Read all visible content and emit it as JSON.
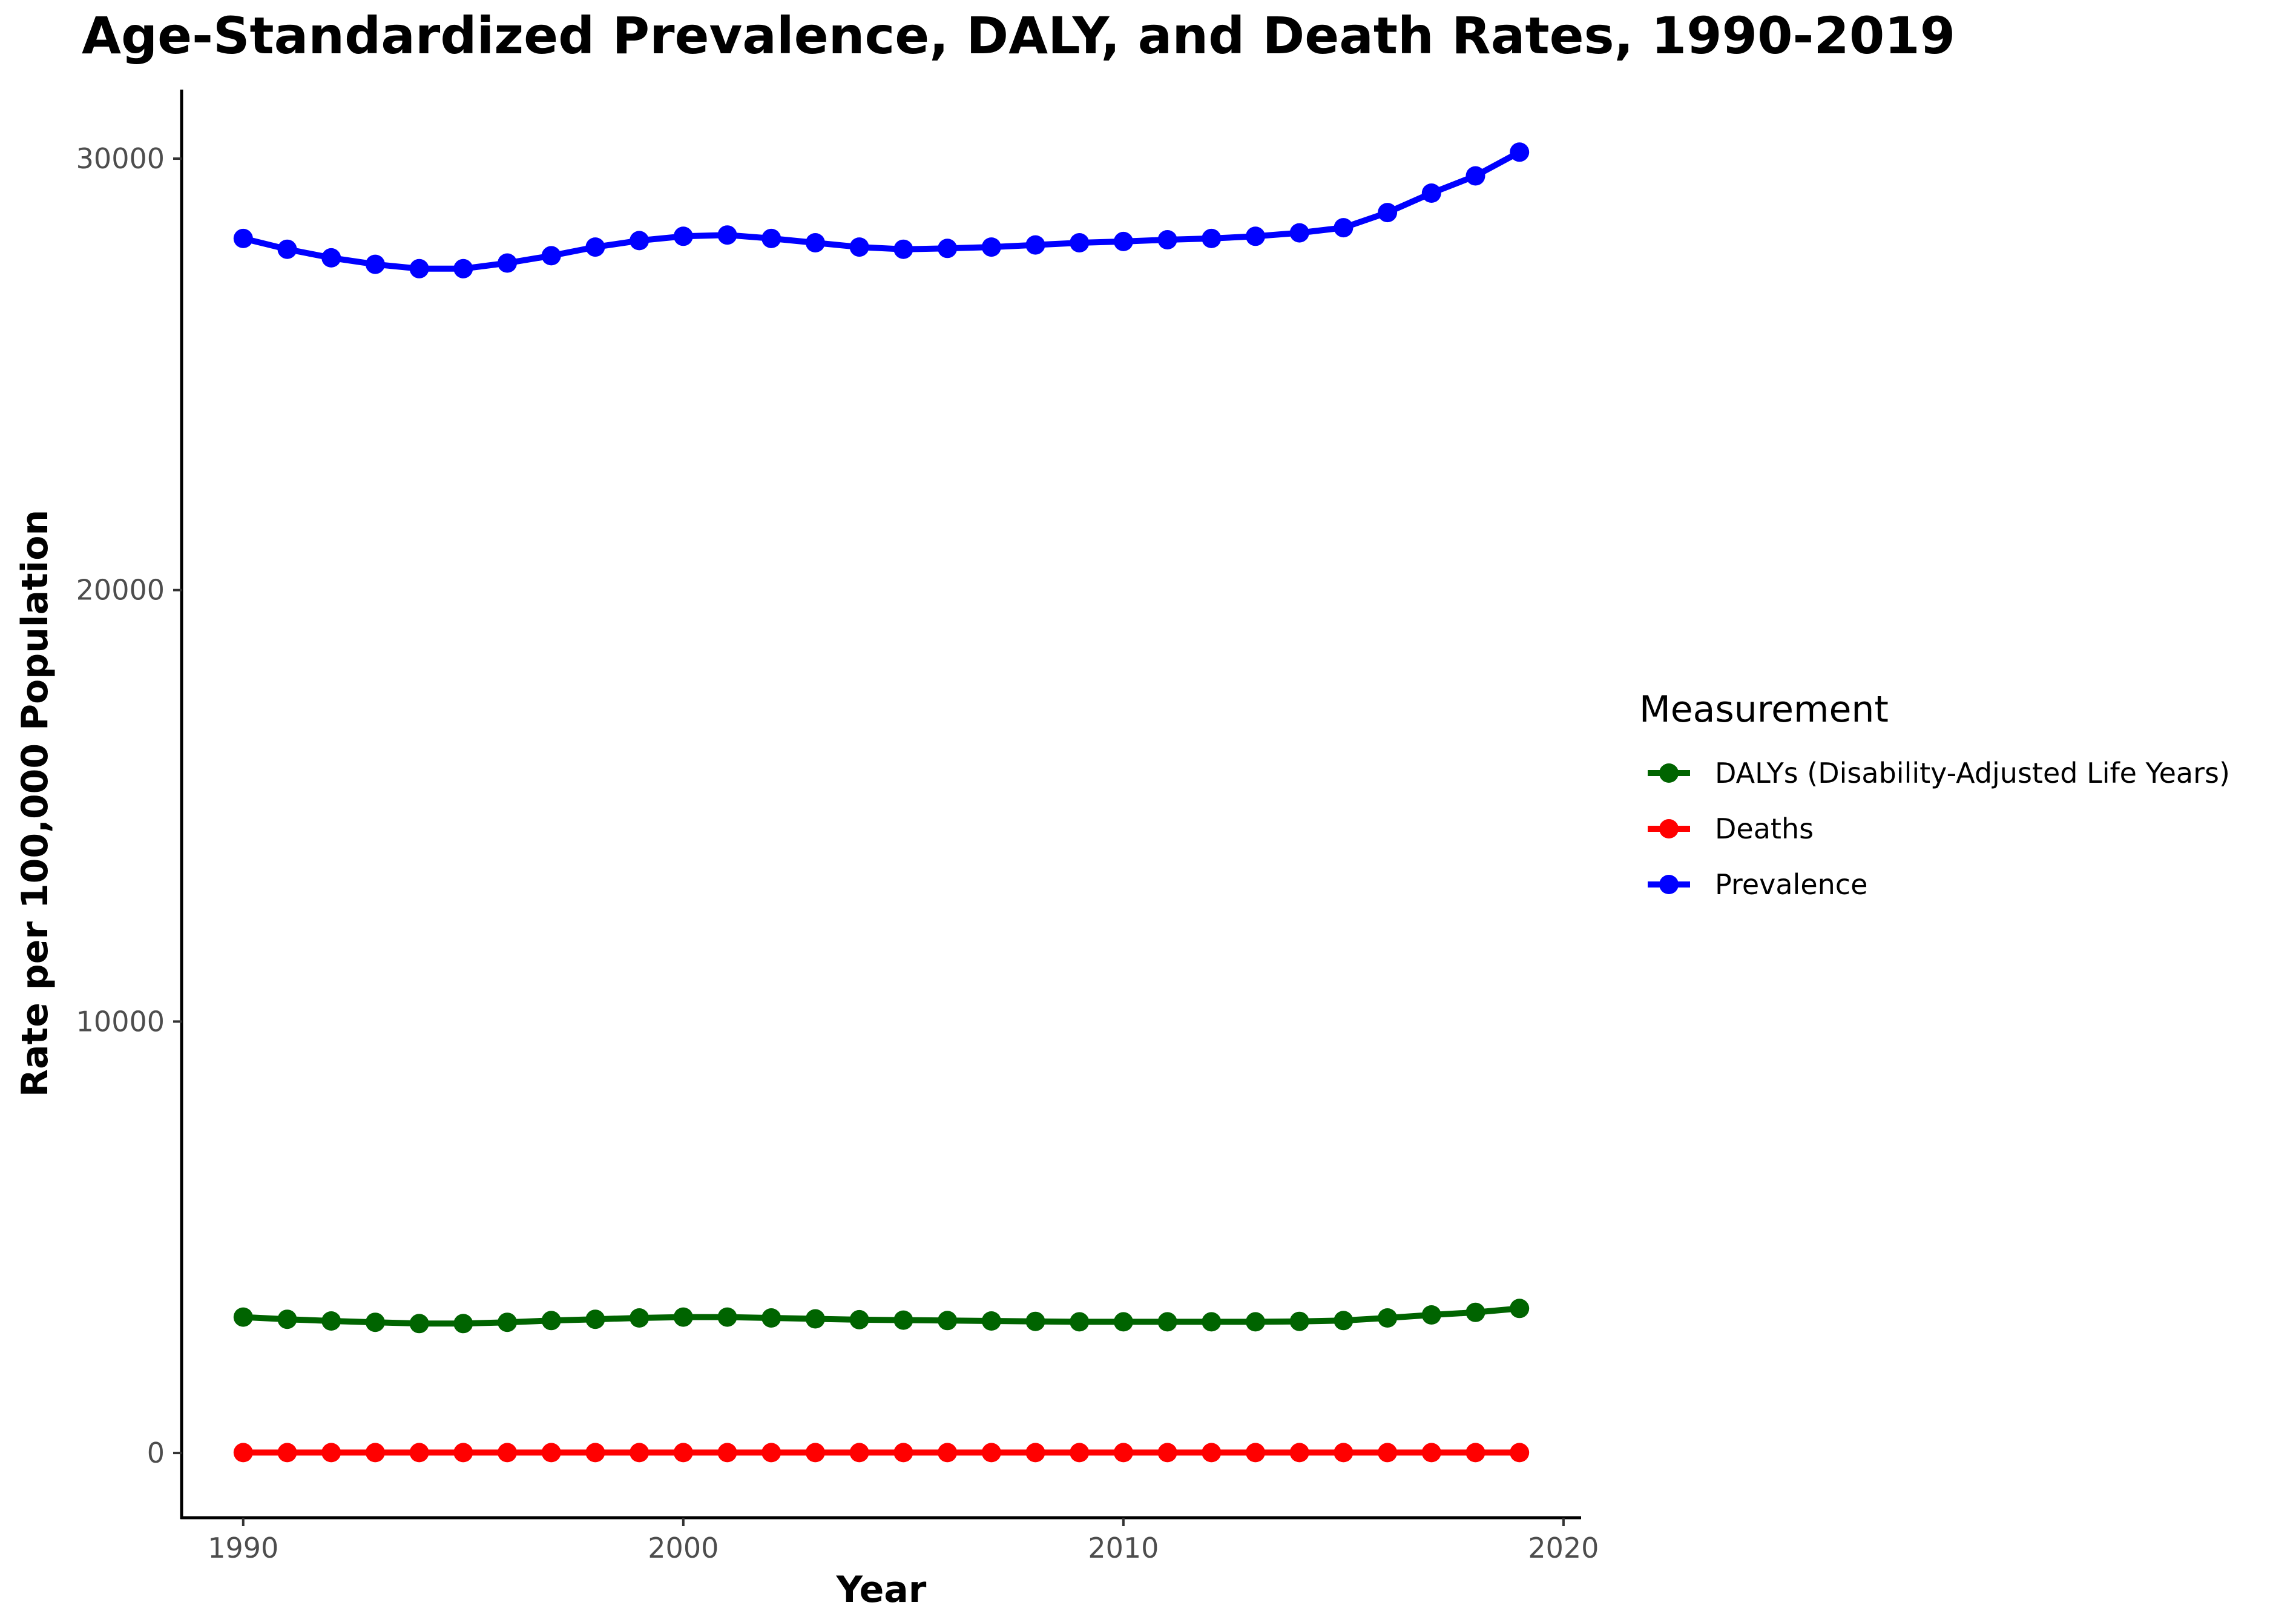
{
  "chart_data": {
    "type": "line",
    "title": "Age-Standardized Prevalence, DALY, and Death Rates, 1990-2019",
    "xlabel": "Year",
    "ylabel": "Rate per 100,000 Population",
    "xlim": [
      1988.6,
      2020.4
    ],
    "ylim": [
      -1500,
      31600
    ],
    "x_ticks": [
      1990,
      2000,
      2010,
      2020
    ],
    "y_ticks": [
      0,
      10000,
      20000,
      30000
    ],
    "x_tick_labels": [
      "1990",
      "2000",
      "2010",
      "2020"
    ],
    "y_tick_labels": [
      "0",
      "10000",
      "20000",
      "30000"
    ],
    "grid": false,
    "legend": {
      "title": "Measurement",
      "position": "right",
      "entries": [
        "DALYs (Disability-Adjusted Life Years)",
        "Deaths",
        "Prevalence"
      ]
    },
    "x": [
      1990,
      1991,
      1992,
      1993,
      1994,
      1995,
      1996,
      1997,
      1998,
      1999,
      2000,
      2001,
      2002,
      2003,
      2004,
      2005,
      2006,
      2007,
      2008,
      2009,
      2010,
      2011,
      2012,
      2013,
      2014,
      2015,
      2016,
      2017,
      2018,
      2019
    ],
    "series": [
      {
        "name": "DALYs (Disability-Adjusted Life Years)",
        "color": "#006400",
        "values": [
          3150,
          3100,
          3060,
          3030,
          3000,
          3000,
          3030,
          3070,
          3100,
          3130,
          3150,
          3150,
          3130,
          3110,
          3090,
          3080,
          3070,
          3060,
          3050,
          3040,
          3040,
          3040,
          3040,
          3040,
          3050,
          3070,
          3130,
          3200,
          3260,
          3350
        ]
      },
      {
        "name": "Deaths",
        "color": "#ff0000",
        "values": [
          10,
          10,
          10,
          10,
          10,
          10,
          10,
          10,
          10,
          10,
          10,
          10,
          10,
          10,
          10,
          10,
          10,
          10,
          10,
          10,
          10,
          10,
          10,
          10,
          10,
          10,
          10,
          10,
          10,
          10
        ]
      },
      {
        "name": "Prevalence",
        "color": "#0000ff",
        "values": [
          28150,
          27900,
          27700,
          27550,
          27450,
          27450,
          27580,
          27750,
          27950,
          28100,
          28200,
          28230,
          28150,
          28050,
          27950,
          27900,
          27920,
          27950,
          28000,
          28050,
          28080,
          28120,
          28150,
          28200,
          28280,
          28400,
          28750,
          29200,
          29600,
          30150
        ]
      }
    ]
  }
}
